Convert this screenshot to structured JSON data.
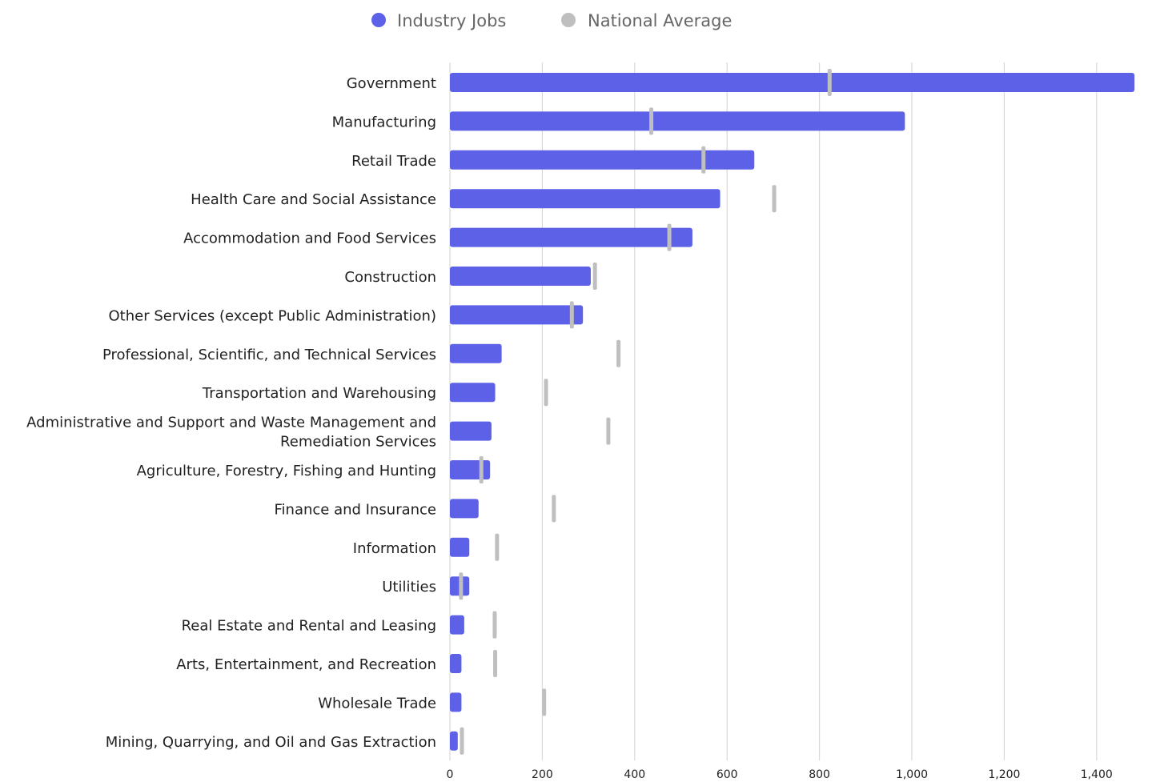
{
  "chart_data": {
    "type": "bar",
    "orientation": "horizontal",
    "legend_position": "top-center",
    "grid": true,
    "xlim": [
      0,
      1480
    ],
    "xticks": [
      0,
      200,
      400,
      600,
      800,
      1000,
      1200,
      1400
    ],
    "xtick_labels": [
      "0",
      "200",
      "400",
      "600",
      "800",
      "1,000",
      "1,200",
      "1,400"
    ],
    "categories": [
      "Government",
      "Manufacturing",
      "Retail Trade",
      "Health Care and Social Assistance",
      "Accommodation and Food Services",
      "Construction",
      "Other Services (except Public Administration)",
      "Professional, Scientific, and Technical Services",
      "Transportation and Warehousing",
      "Administrative and Support and Waste Management and Remediation Services",
      "Agriculture, Forestry, Fishing and Hunting",
      "Finance and Insurance",
      "Information",
      "Utilities",
      "Real Estate and Rental and Leasing",
      "Arts, Entertainment, and Recreation",
      "Wholesale Trade",
      "Mining, Quarrying, and Oil and Gas Extraction"
    ],
    "category_lines": [
      [
        "Government"
      ],
      [
        "Manufacturing"
      ],
      [
        "Retail Trade"
      ],
      [
        "Health Care and Social Assistance"
      ],
      [
        "Accommodation and Food Services"
      ],
      [
        "Construction"
      ],
      [
        "Other Services (except Public Administration)"
      ],
      [
        "Professional, Scientific, and Technical Services"
      ],
      [
        "Transportation and Warehousing"
      ],
      [
        "Administrative and Support and Waste Management and",
        "Remediation Services"
      ],
      [
        "Agriculture, Forestry, Fishing and Hunting"
      ],
      [
        "Finance and Insurance"
      ],
      [
        "Information"
      ],
      [
        "Utilities"
      ],
      [
        "Real Estate and Rental and Leasing"
      ],
      [
        "Arts, Entertainment, and Recreation"
      ],
      [
        "Wholesale Trade"
      ],
      [
        "Mining, Quarrying, and Oil and Gas Extraction"
      ]
    ],
    "series": [
      {
        "name": "Industry Jobs",
        "color": "#5d61e8",
        "mark": "bar",
        "values": [
          1482,
          985,
          659,
          585,
          525,
          305,
          288,
          112,
          98,
          90,
          87,
          62,
          42,
          42,
          31,
          25,
          25,
          17
        ]
      },
      {
        "name": "National Average",
        "color": "#bfbfbf",
        "mark": "tick",
        "values": [
          822,
          436,
          549,
          702,
          475,
          314,
          264,
          365,
          208,
          343,
          68,
          225,
          102,
          24,
          97,
          98,
          204,
          26
        ]
      }
    ]
  }
}
